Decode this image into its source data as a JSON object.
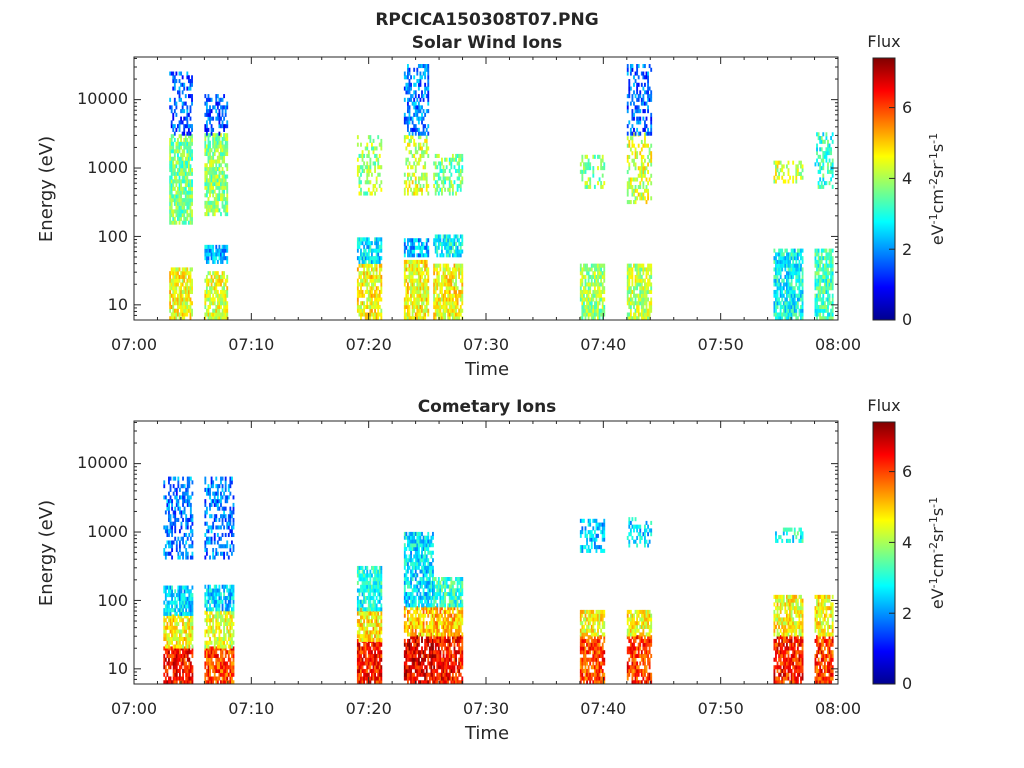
{
  "figure": {
    "filename": "RPCICA150308T07.PNG"
  },
  "chart_data": [
    {
      "type": "heatmap",
      "title": "Solar Wind Ions",
      "xlabel": "Time",
      "ylabel": "Energy (eV)",
      "x_ticks": [
        "07:00",
        "07:10",
        "07:20",
        "07:30",
        "07:40",
        "07:50",
        "08:00"
      ],
      "xlim": [
        "07:00",
        "08:00"
      ],
      "y_scale": "log",
      "y_ticks": [
        10,
        100,
        1000,
        10000
      ],
      "ylim": [
        6,
        42000
      ],
      "colorbar": {
        "title": "Flux",
        "label": "eV-1cm-2sr-1s-1",
        "ticks": [
          0,
          2,
          4,
          6
        ],
        "range": [
          0,
          7.4
        ],
        "colormap": "jet"
      },
      "bursts": [
        {
          "start": "07:03",
          "end": "07:05",
          "bands": [
            [
              6,
              35,
              4.6
            ],
            [
              150,
              3000,
              3.6
            ],
            [
              3000,
              25000,
              1.6
            ]
          ]
        },
        {
          "start": "07:06",
          "end": "07:08",
          "bands": [
            [
              6,
              30,
              4.4
            ],
            [
              40,
              70,
              2.2
            ],
            [
              200,
              3000,
              3.8
            ],
            [
              3000,
              12000,
              1.5
            ]
          ]
        },
        {
          "start": "07:19",
          "end": "07:21",
          "bands": [
            [
              6,
              40,
              4.6
            ],
            [
              40,
              90,
              2.6
            ],
            [
              400,
              3000,
              3.9
            ]
          ]
        },
        {
          "start": "07:23",
          "end": "07:25",
          "bands": [
            [
              6,
              45,
              4.6
            ],
            [
              50,
              90,
              2.2
            ],
            [
              400,
              3000,
              4.3
            ],
            [
              3000,
              30000,
              1.8
            ]
          ]
        },
        {
          "start": "07:25.5",
          "end": "07:28",
          "bands": [
            [
              6,
              40,
              4.6
            ],
            [
              50,
              100,
              2.8
            ],
            [
              400,
              1500,
              3.6
            ]
          ]
        },
        {
          "start": "07:38",
          "end": "07:40",
          "bands": [
            [
              6,
              40,
              3.9
            ],
            [
              500,
              1500,
              3.8
            ]
          ]
        },
        {
          "start": "07:42",
          "end": "07:44",
          "bands": [
            [
              6,
              40,
              4.1
            ],
            [
              300,
              3000,
              4.3
            ],
            [
              3000,
              30000,
              1.6
            ]
          ]
        },
        {
          "start": "07:54.5",
          "end": "07:57",
          "bands": [
            [
              6,
              60,
              2.8
            ],
            [
              600,
              1200,
              4.3
            ]
          ]
        },
        {
          "start": "07:58",
          "end": "07:59.5",
          "bands": [
            [
              6,
              60,
              3.2
            ],
            [
              500,
              3000,
              3.1
            ]
          ]
        }
      ]
    },
    {
      "type": "heatmap",
      "title": "Cometary Ions",
      "xlabel": "Time",
      "ylabel": "Energy (eV)",
      "x_ticks": [
        "07:00",
        "07:10",
        "07:20",
        "07:30",
        "07:40",
        "07:50",
        "08:00"
      ],
      "xlim": [
        "07:00",
        "08:00"
      ],
      "y_scale": "log",
      "y_ticks": [
        10,
        100,
        1000,
        10000
      ],
      "ylim": [
        6,
        42000
      ],
      "colorbar": {
        "title": "Flux",
        "label": "eV-1cm-2sr-1s-1",
        "ticks": [
          0,
          2,
          4,
          6
        ],
        "range": [
          0,
          7.4
        ],
        "colormap": "jet"
      },
      "bursts": [
        {
          "start": "07:02.5",
          "end": "07:05",
          "bands": [
            [
              6,
              20,
              6.4
            ],
            [
              20,
              60,
              4.6
            ],
            [
              60,
              150,
              2.5
            ],
            [
              400,
              6000,
              1.8
            ]
          ]
        },
        {
          "start": "07:06",
          "end": "07:08.5",
          "bands": [
            [
              6,
              20,
              6.0
            ],
            [
              20,
              70,
              4.4
            ],
            [
              70,
              150,
              2.5
            ],
            [
              400,
              6000,
              1.8
            ]
          ]
        },
        {
          "start": "07:19",
          "end": "07:21",
          "bands": [
            [
              6,
              25,
              6.3
            ],
            [
              25,
              70,
              4.8
            ],
            [
              70,
              300,
              2.9
            ]
          ]
        },
        {
          "start": "07:23",
          "end": "07:25.5",
          "bands": [
            [
              6,
              30,
              6.6
            ],
            [
              30,
              80,
              5.0
            ],
            [
              80,
              1000,
              2.6
            ]
          ]
        },
        {
          "start": "07:25.5",
          "end": "07:28",
          "bands": [
            [
              6,
              30,
              6.4
            ],
            [
              30,
              80,
              5.1
            ],
            [
              80,
              200,
              3.1
            ]
          ]
        },
        {
          "start": "07:38",
          "end": "07:40",
          "bands": [
            [
              6,
              30,
              6.0
            ],
            [
              30,
              70,
              4.6
            ],
            [
              500,
              1500,
              2.4
            ]
          ]
        },
        {
          "start": "07:42",
          "end": "07:44",
          "bands": [
            [
              6,
              30,
              6.1
            ],
            [
              30,
              70,
              4.6
            ],
            [
              600,
              1500,
              2.5
            ]
          ]
        },
        {
          "start": "07:54.5",
          "end": "07:57",
          "bands": [
            [
              6,
              30,
              6.3
            ],
            [
              30,
              120,
              4.6
            ],
            [
              700,
              1100,
              2.9
            ]
          ]
        },
        {
          "start": "07:58",
          "end": "07:59.5",
          "bands": [
            [
              6,
              30,
              6.1
            ],
            [
              30,
              120,
              4.6
            ]
          ]
        }
      ]
    }
  ]
}
